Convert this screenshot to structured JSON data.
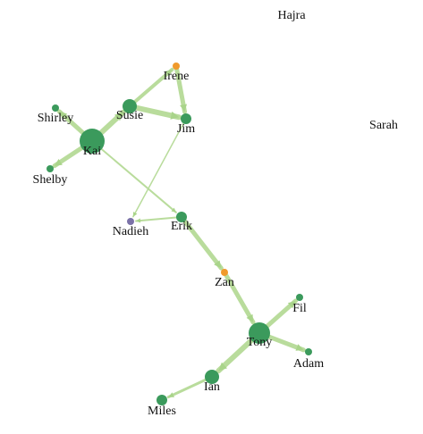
{
  "graph": {
    "colors": {
      "edge": "#b9dc9c",
      "arrow": "#a9d48a",
      "green": "#3b9a5c",
      "orange": "#f09a2c",
      "purple": "#7b72a8"
    },
    "nodes": [
      {
        "id": "hajra",
        "label": "Hajra",
        "color": "green"
      },
      {
        "id": "sarah",
        "label": "Sarah",
        "color": "green"
      },
      {
        "id": "irene",
        "label": "Irene",
        "color": "orange"
      },
      {
        "id": "susie",
        "label": "Susie",
        "color": "green"
      },
      {
        "id": "jim",
        "label": "Jim",
        "color": "green"
      },
      {
        "id": "shirley",
        "label": "Shirley",
        "color": "green"
      },
      {
        "id": "kai",
        "label": "Kai",
        "color": "green"
      },
      {
        "id": "shelby",
        "label": "Shelby",
        "color": "green"
      },
      {
        "id": "nadieh",
        "label": "Nadieh",
        "color": "purple"
      },
      {
        "id": "erik",
        "label": "Erik",
        "color": "green"
      },
      {
        "id": "zan",
        "label": "Zan",
        "color": "orange"
      },
      {
        "id": "fil",
        "label": "Fil",
        "color": "green"
      },
      {
        "id": "tony",
        "label": "Tony",
        "color": "green"
      },
      {
        "id": "adam",
        "label": "Adam",
        "color": "green"
      },
      {
        "id": "ian",
        "label": "Ian",
        "color": "green"
      },
      {
        "id": "miles",
        "label": "Miles",
        "color": "green"
      }
    ],
    "edges": [
      {
        "source": "susie",
        "target": "irene"
      },
      {
        "source": "irene",
        "target": "jim"
      },
      {
        "source": "susie",
        "target": "jim"
      },
      {
        "source": "kai",
        "target": "susie"
      },
      {
        "source": "kai",
        "target": "shirley"
      },
      {
        "source": "kai",
        "target": "shelby"
      },
      {
        "source": "kai",
        "target": "erik"
      },
      {
        "source": "jim",
        "target": "nadieh"
      },
      {
        "source": "erik",
        "target": "nadieh"
      },
      {
        "source": "erik",
        "target": "zan"
      },
      {
        "source": "zan",
        "target": "tony"
      },
      {
        "source": "tony",
        "target": "fil"
      },
      {
        "source": "tony",
        "target": "adam"
      },
      {
        "source": "tony",
        "target": "ian"
      },
      {
        "source": "ian",
        "target": "miles"
      }
    ]
  }
}
